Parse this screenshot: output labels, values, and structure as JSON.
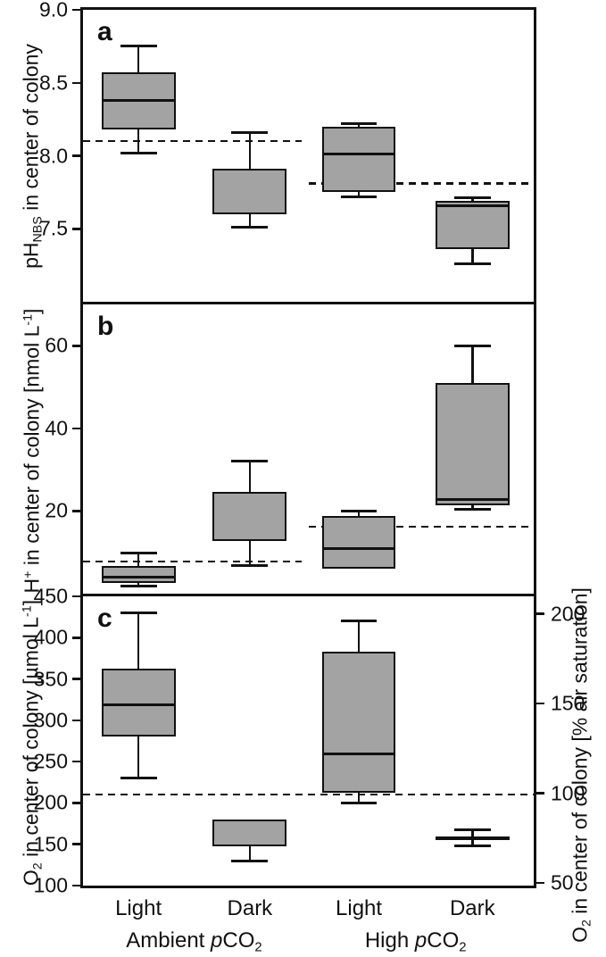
{
  "figure": {
    "background": "#ffffff"
  },
  "chart_data": {
    "type": "boxplot",
    "orientation": "vertical",
    "grid": false,
    "legend": "none",
    "x_categories": [
      "Light",
      "Dark",
      "Light",
      "Dark"
    ],
    "x_centers_pct": [
      12.3,
      37.0,
      61.2,
      86.4
    ],
    "x_group_labels": [
      {
        "parts": [
          {
            "t": "Ambient "
          },
          {
            "t": "p",
            "i": true
          },
          {
            "t": "CO"
          },
          {
            "t": "2",
            "sub": true
          }
        ],
        "center_pct": 24.65
      },
      {
        "parts": [
          {
            "t": "High "
          },
          {
            "t": "p",
            "i": true
          },
          {
            "t": "CO"
          },
          {
            "t": "2",
            "sub": true
          }
        ],
        "center_pct": 73.8
      }
    ],
    "styles": {
      "box_fill": "#a3a3a3",
      "line_color": "#111111",
      "box_width_pct": 16.4,
      "cap_width_pct": 8.1
    },
    "panels": [
      {
        "letter": "a",
        "ylabel_parts": [
          {
            "t": "pH"
          },
          {
            "t": "NBS",
            "sub": true
          },
          {
            "t": " in center of colony"
          }
        ],
        "ylim": [
          7.0,
          9.0
        ],
        "yticks": [
          {
            "v": 9.0,
            "label": "9.0"
          },
          {
            "v": 8.5,
            "label": "8.5"
          },
          {
            "v": 8.0,
            "label": "8.0"
          },
          {
            "v": 7.5,
            "label": "7.5"
          }
        ],
        "dashed_reference_lines": [
          {
            "v": 8.1,
            "x0_pct": 0,
            "x1_pct": 48.5
          },
          {
            "v": 7.81,
            "x0_pct": 50,
            "x1_pct": 100
          }
        ],
        "boxes": [
          {
            "category": "Ambient pCO2 Light",
            "lo": 8.02,
            "q1": 8.18,
            "med": 8.38,
            "q3": 8.57,
            "hi": 8.75
          },
          {
            "category": "Ambient pCO2 Dark",
            "lo": 7.51,
            "q1": 7.6,
            "med": null,
            "q3": 7.91,
            "hi": 8.16
          },
          {
            "category": "High pCO2 Light",
            "lo": 7.72,
            "q1": 7.75,
            "med": 8.01,
            "q3": 8.2,
            "hi": 8.22
          },
          {
            "category": "High pCO2 Dark",
            "lo": 7.26,
            "q1": 7.36,
            "med": 7.66,
            "q3": 7.69,
            "hi": 7.71
          }
        ]
      },
      {
        "letter": "b",
        "ylabel_parts": [
          {
            "t": "H"
          },
          {
            "t": "+",
            "sup": true
          },
          {
            "t": " in center of colony [nmol L"
          },
          {
            "t": "-1",
            "sup": true
          },
          {
            "t": "]"
          }
        ],
        "ylim": [
          0,
          70
        ],
        "yticks": [
          {
            "v": 60,
            "label": "60"
          },
          {
            "v": 40,
            "label": "40"
          },
          {
            "v": 20,
            "label": "20"
          }
        ],
        "dashed_reference_lines": [
          {
            "v": 7.8,
            "x0_pct": 0,
            "x1_pct": 48.5
          },
          {
            "v": 16.2,
            "x0_pct": 50,
            "x1_pct": 100
          }
        ],
        "boxes": [
          {
            "category": "Ambient pCO2 Light",
            "lo": 1.8,
            "q1": 2.6,
            "med": 3.9,
            "q3": 6.7,
            "hi": 9.9
          },
          {
            "category": "Ambient pCO2 Dark",
            "lo": 6.9,
            "q1": 12.8,
            "med": null,
            "q3": 24.6,
            "hi": 32
          },
          {
            "category": "High pCO2 Light",
            "lo": null,
            "q1": 6.0,
            "med": 11,
            "q3": 18.9,
            "hi": 20
          },
          {
            "category": "High pCO2 Dark",
            "lo": 20.4,
            "q1": 21.4,
            "med": 22.8,
            "q3": 51,
            "hi": 60
          }
        ]
      },
      {
        "letter": "c",
        "ylabel_parts": [
          {
            "t": "O"
          },
          {
            "t": "2",
            "sub": true
          },
          {
            "t": " in center of colony [µmol L"
          },
          {
            "t": "-1",
            "sup": true
          },
          {
            "t": "]"
          }
        ],
        "ylim": [
          100,
          450
        ],
        "yticks": [
          {
            "v": 450,
            "label": "450"
          },
          {
            "v": 400,
            "label": "400"
          },
          {
            "v": 350,
            "label": "350"
          },
          {
            "v": 300,
            "label": "300"
          },
          {
            "v": 250,
            "label": "250"
          },
          {
            "v": 200,
            "label": "200"
          },
          {
            "v": 150,
            "label": "150"
          },
          {
            "v": 100,
            "label": "100"
          }
        ],
        "right_ylabel_parts": [
          {
            "t": "O"
          },
          {
            "t": "2",
            "sub": true
          },
          {
            "t": " in center of colony [% air saturation]"
          }
        ],
        "right_ylim": [
          48.6,
          209.7
        ],
        "right_yticks": [
          {
            "v": 200,
            "label": "200"
          },
          {
            "v": 150,
            "label": "150"
          },
          {
            "v": 100,
            "label": "100"
          },
          {
            "v": 50,
            "label": "50"
          }
        ],
        "dashed_reference_lines": [
          {
            "v": 210,
            "x0_pct": 0,
            "x1_pct": 100
          }
        ],
        "boxes": [
          {
            "category": "Ambient pCO2 Light",
            "lo": 230,
            "q1": 280,
            "med": 319,
            "q3": 363,
            "hi": 430
          },
          {
            "category": "Ambient pCO2 Dark",
            "lo": 130,
            "q1": 148,
            "med": null,
            "q3": 180,
            "hi": null
          },
          {
            "category": "High pCO2 Light",
            "lo": 200,
            "q1": 212,
            "med": 259,
            "q3": 383,
            "hi": 420
          },
          {
            "category": "High pCO2 Dark",
            "lo": 148,
            "q1": 157,
            "med": null,
            "q3": 159,
            "hi": 168
          }
        ]
      }
    ]
  }
}
